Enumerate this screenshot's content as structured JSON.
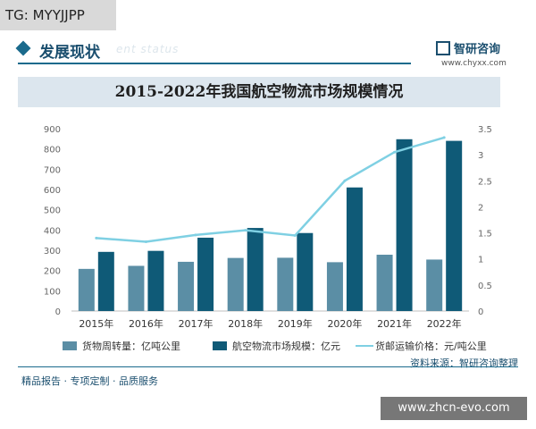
{
  "tag": "TG: MYYJJPP",
  "section": {
    "title": "发展现状",
    "subtitle": "ent status"
  },
  "brand": {
    "name": "智研咨询",
    "url": "www.chyxx.com"
  },
  "footer": {
    "source": "资料来源：智研咨询整理",
    "slogan": "精品报告 · 专项定制 · 品质服务"
  },
  "watermark": "www.zhcn-evo.com",
  "colors": {
    "bar_light": "#5b8ea5",
    "bar_dark": "#0f5a77",
    "line": "#7fd0e3",
    "accent": "#1a6a8c"
  },
  "chart_data": {
    "type": "bar",
    "title": "2015-2022年我国航空物流市场规模情况",
    "categories": [
      "2015年",
      "2016年",
      "2017年",
      "2018年",
      "2019年",
      "2020年",
      "2021年",
      "2022年"
    ],
    "y_left": {
      "ylim": [
        0,
        900
      ],
      "ticks": [
        "0",
        "100",
        "200",
        "300",
        "400",
        "500",
        "600",
        "700",
        "800",
        "900"
      ]
    },
    "y_right": {
      "ylim": [
        0,
        3.5
      ],
      "ticks": [
        "0",
        "0.5",
        "1",
        "1.5",
        "2",
        "2.5",
        "3",
        "3.5"
      ]
    },
    "series": [
      {
        "name": "货物周转量：亿吨公里",
        "type": "bar",
        "axis": "left",
        "values": [
          208,
          223,
          243,
          262,
          263,
          241,
          278,
          254
        ]
      },
      {
        "name": "航空物流市场规模：亿元",
        "type": "bar",
        "axis": "left",
        "values": [
          292,
          297,
          362,
          410,
          385,
          610,
          848,
          840
        ]
      },
      {
        "name": "货邮运输价格：元/吨公里",
        "type": "line",
        "axis": "right",
        "values": [
          1.4,
          1.33,
          1.46,
          1.55,
          1.45,
          2.5,
          3.05,
          3.33
        ]
      }
    ],
    "grid": false,
    "legend": "bottom"
  }
}
